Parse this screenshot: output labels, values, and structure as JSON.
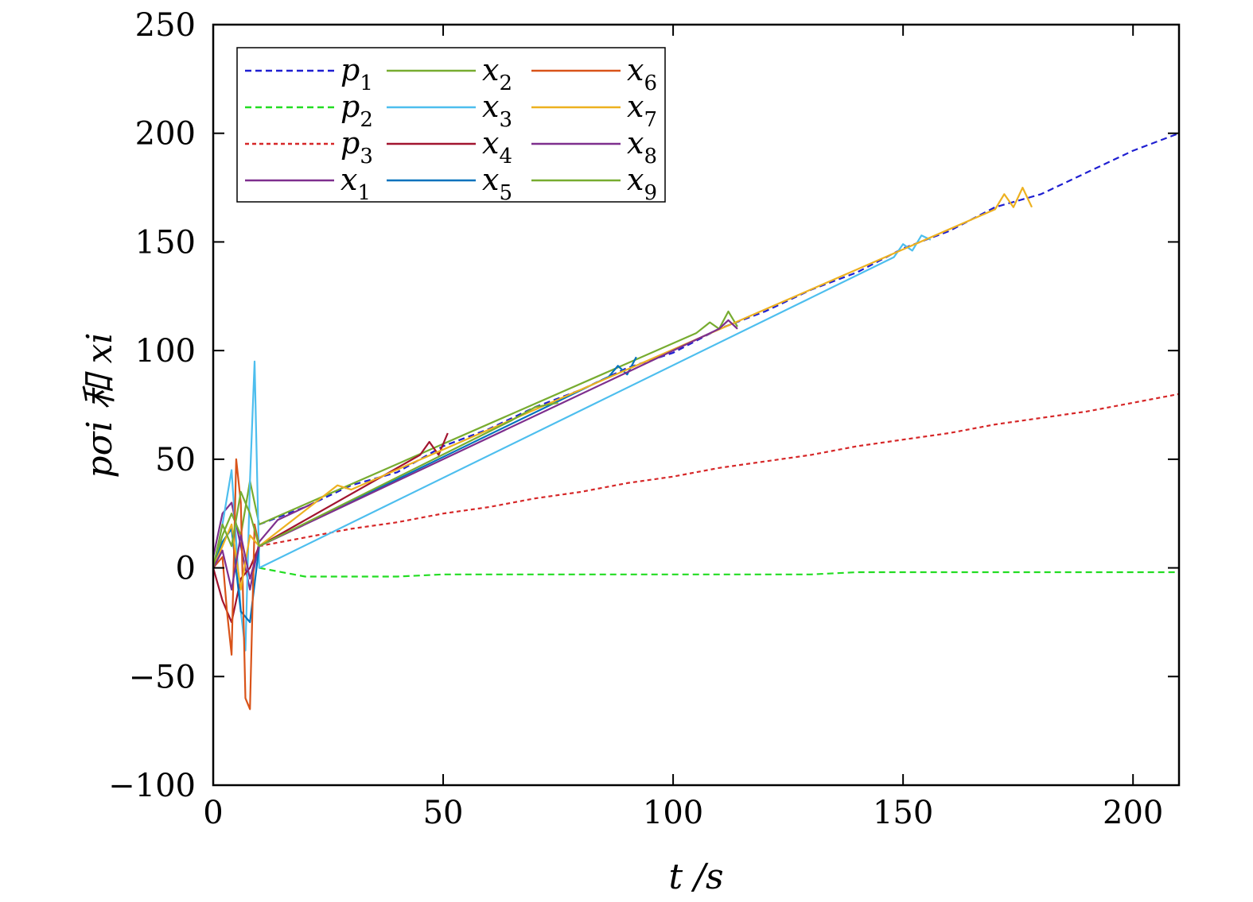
{
  "chart_data": {
    "type": "line",
    "xlabel": "t /s",
    "ylabel": "pσi 和 xi",
    "xlim": [
      0,
      210
    ],
    "ylim": [
      -100,
      250
    ],
    "x_ticks": [
      "0",
      "50",
      "100",
      "150",
      "200"
    ],
    "x_tick_values": [
      0,
      50,
      100,
      150,
      200
    ],
    "y_ticks": [
      "−100",
      "−50",
      "0",
      "50",
      "100",
      "150",
      "200",
      "250"
    ],
    "y_tick_values": [
      -100,
      -50,
      0,
      50,
      100,
      150,
      200,
      250
    ],
    "grid": false,
    "legend_placement": "top-left",
    "legend": [
      {
        "base": "p",
        "sub": "1",
        "color": "#1f1fd1",
        "dash": "8,5"
      },
      {
        "base": "x",
        "sub": "2",
        "color": "#77ac30",
        "dash": ""
      },
      {
        "base": "x",
        "sub": "6",
        "color": "#d95319",
        "dash": ""
      },
      {
        "base": "p",
        "sub": "2",
        "color": "#22dd22",
        "dash": "8,5"
      },
      {
        "base": "x",
        "sub": "3",
        "color": "#4dbeee",
        "dash": ""
      },
      {
        "base": "x",
        "sub": "7",
        "color": "#edb120",
        "dash": ""
      },
      {
        "base": "p",
        "sub": "3",
        "color": "#d62728",
        "dash": "5,4"
      },
      {
        "base": "x",
        "sub": "4",
        "color": "#a2142f",
        "dash": ""
      },
      {
        "base": "x",
        "sub": "8",
        "color": "#7e2f8e",
        "dash": ""
      },
      {
        "base": "x",
        "sub": "1",
        "color": "#7e2f8e",
        "dash": ""
      },
      {
        "base": "x",
        "sub": "5",
        "color": "#0072bd",
        "dash": ""
      },
      {
        "base": "x",
        "sub": "9",
        "color": "#77ac30",
        "dash": ""
      }
    ],
    "series": [
      {
        "name": "p1",
        "color": "#1f1fd1",
        "dash": "8,5",
        "x": [
          10,
          20,
          30,
          40,
          50,
          60,
          70,
          80,
          90,
          100,
          110,
          120,
          130,
          140,
          150,
          160,
          170,
          180,
          190,
          200,
          210
        ],
        "y": [
          20,
          28,
          38,
          44,
          56,
          64,
          74,
          82,
          92,
          99,
          110,
          118,
          128,
          136,
          147,
          155,
          166,
          172,
          182,
          192,
          200
        ]
      },
      {
        "name": "p2",
        "color": "#22dd22",
        "dash": "8,5",
        "x": [
          10,
          20,
          30,
          40,
          50,
          60,
          70,
          80,
          90,
          100,
          110,
          120,
          130,
          140,
          150,
          160,
          170,
          180,
          190,
          200,
          210
        ],
        "y": [
          0,
          -4,
          -4,
          -4,
          -3,
          -3,
          -3,
          -3,
          -3,
          -3,
          -3,
          -3,
          -3,
          -2,
          -2,
          -2,
          -2,
          -2,
          -2,
          -2,
          -2
        ]
      },
      {
        "name": "p3",
        "color": "#d62728",
        "dash": "5,4",
        "x": [
          10,
          20,
          30,
          40,
          50,
          60,
          70,
          80,
          90,
          100,
          110,
          120,
          130,
          140,
          150,
          160,
          170,
          180,
          190,
          200,
          210
        ],
        "y": [
          10,
          14,
          18,
          21,
          25,
          28,
          32,
          35,
          39,
          42,
          46,
          49,
          52,
          56,
          59,
          62,
          66,
          69,
          72,
          76,
          80
        ]
      },
      {
        "name": "x1",
        "color": "#7e2f8e",
        "dash": "",
        "x": [
          0,
          2,
          4,
          6,
          8,
          10,
          14,
          18,
          22
        ],
        "y": [
          5,
          25,
          30,
          10,
          -10,
          12,
          22,
          26,
          30
        ]
      },
      {
        "name": "x2",
        "color": "#77ac30",
        "dash": "",
        "x": [
          0,
          2,
          4,
          6,
          8,
          10,
          105,
          108,
          110,
          112,
          114
        ],
        "y": [
          0,
          15,
          25,
          15,
          40,
          20,
          108,
          113,
          110,
          118,
          111
        ]
      },
      {
        "name": "x3",
        "color": "#4dbeee",
        "dash": "",
        "x": [
          0,
          2,
          4,
          6,
          7,
          8,
          9,
          10,
          148,
          150,
          152,
          154,
          156
        ],
        "y": [
          0,
          20,
          45,
          -20,
          -38,
          40,
          95,
          0,
          143,
          149,
          146,
          153,
          151
        ]
      },
      {
        "name": "x4",
        "color": "#a2142f",
        "dash": "",
        "x": [
          0,
          2,
          4,
          6,
          8,
          10,
          45,
          47,
          49,
          51
        ],
        "y": [
          0,
          -15,
          -25,
          -5,
          0,
          10,
          52,
          58,
          52,
          62
        ]
      },
      {
        "name": "x5",
        "color": "#0072bd",
        "dash": "",
        "x": [
          0,
          2,
          4,
          6,
          8,
          10,
          86,
          88,
          90,
          92
        ],
        "y": [
          0,
          12,
          18,
          -20,
          -25,
          10,
          88,
          93,
          89,
          97
        ]
      },
      {
        "name": "x6",
        "color": "#d95319",
        "dash": "",
        "x": [
          0,
          2,
          3,
          4,
          5,
          6,
          7,
          8,
          9,
          10
        ],
        "y": [
          0,
          5,
          -20,
          -40,
          50,
          30,
          -60,
          -65,
          20,
          10
        ]
      },
      {
        "name": "x7",
        "color": "#edb120",
        "dash": "",
        "x": [
          0,
          2,
          4,
          6,
          8,
          10,
          24,
          27,
          30,
          170,
          172,
          174,
          176,
          178
        ],
        "y": [
          0,
          10,
          20,
          -10,
          15,
          10,
          33,
          38,
          36,
          165,
          172,
          166,
          175,
          166
        ]
      },
      {
        "name": "x8",
        "color": "#7e2f8e",
        "dash": "",
        "x": [
          0,
          2,
          4,
          6,
          8,
          10,
          110,
          112,
          114
        ],
        "y": [
          0,
          8,
          -10,
          15,
          -5,
          10,
          110,
          114,
          110
        ]
      },
      {
        "name": "x9",
        "color": "#77ac30",
        "dash": "",
        "x": [
          0,
          2,
          4,
          6,
          8,
          10,
          65,
          70,
          75
        ],
        "y": [
          0,
          20,
          10,
          35,
          25,
          10,
          68,
          74,
          76
        ]
      }
    ]
  }
}
